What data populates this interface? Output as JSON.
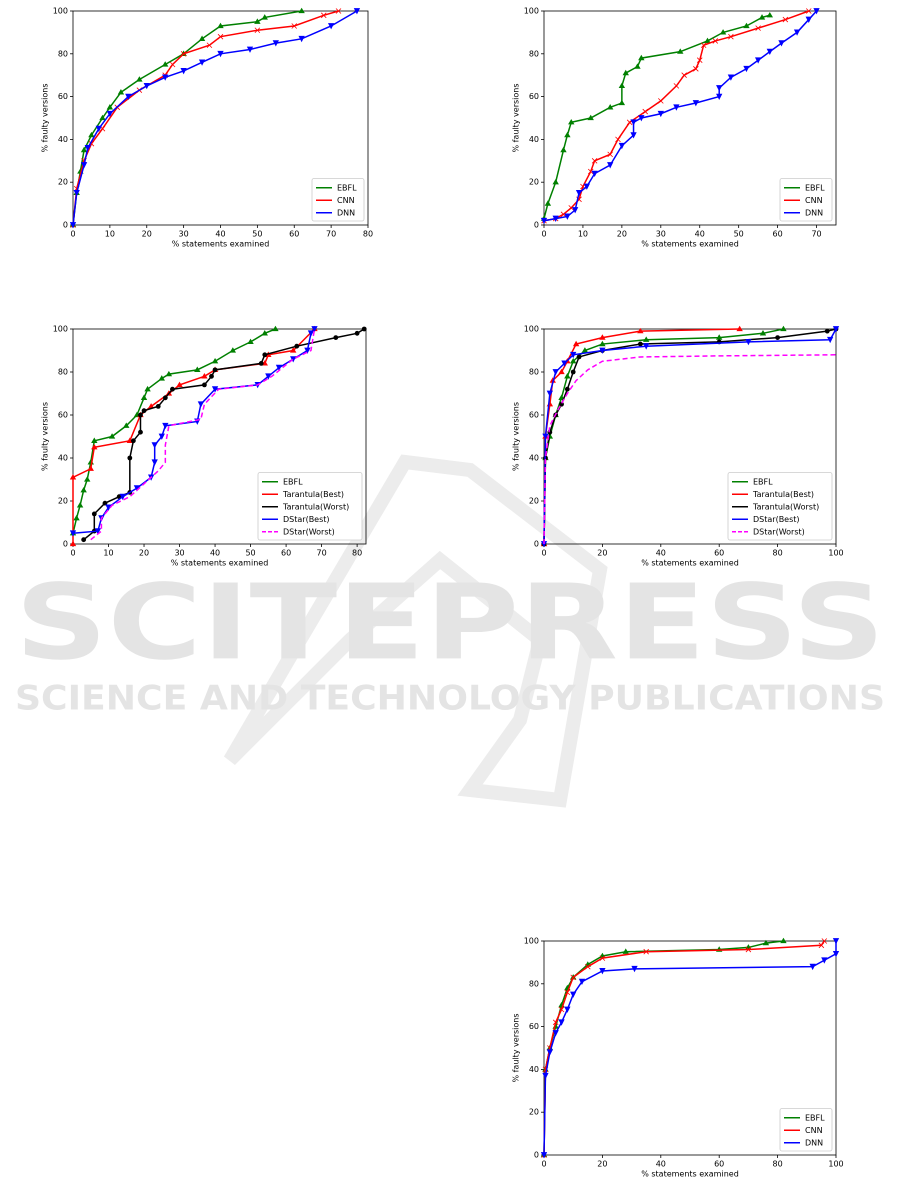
{
  "watermark": {
    "title": "SCITEPRESS",
    "subtitle": "SCIENCE AND TECHNOLOGY PUBLICATIONS"
  },
  "chart_data": [
    {
      "type": "line",
      "x_label": "%  statements examined",
      "y_label": "% faulty versions",
      "xlim": [
        0,
        80
      ],
      "xticks": [
        0,
        10,
        20,
        30,
        40,
        50,
        60,
        70,
        80
      ],
      "ylim": [
        0,
        100
      ],
      "yticks": [
        0,
        20,
        40,
        60,
        80,
        100
      ],
      "legend": "lower right",
      "series": [
        {
          "name": "EBFL",
          "color": "#008000",
          "marker": "star",
          "x": [
            0,
            1,
            2,
            3,
            5,
            8,
            10,
            13,
            18,
            25,
            30,
            35,
            40,
            50,
            52,
            62
          ],
          "values": [
            0,
            15,
            25,
            35,
            42,
            50,
            55,
            62,
            68,
            75,
            80,
            87,
            93,
            95,
            97,
            100
          ]
        },
        {
          "name": "CNN",
          "color": "#ff0000",
          "marker": "x",
          "x": [
            0,
            1,
            3,
            5,
            8,
            12,
            18,
            25,
            27,
            30,
            37,
            40,
            50,
            60,
            68,
            72
          ],
          "values": [
            0,
            17,
            30,
            38,
            45,
            55,
            63,
            70,
            75,
            80,
            84,
            88,
            91,
            93,
            98,
            100
          ]
        },
        {
          "name": "DNN",
          "color": "#0000ff",
          "marker": "tri",
          "x": [
            0,
            1,
            3,
            4,
            7,
            10,
            15,
            20,
            25,
            30,
            35,
            40,
            48,
            55,
            62,
            70,
            77
          ],
          "values": [
            0,
            15,
            28,
            36,
            45,
            52,
            60,
            65,
            69,
            72,
            76,
            80,
            82,
            85,
            87,
            93,
            100
          ]
        }
      ]
    },
    {
      "type": "line",
      "x_label": "%  statements examined",
      "y_label": "% faulty versions",
      "xlim": [
        0,
        75
      ],
      "xticks": [
        0,
        10,
        20,
        30,
        40,
        50,
        60,
        70
      ],
      "ylim": [
        0,
        100
      ],
      "yticks": [
        0,
        20,
        40,
        60,
        80,
        100
      ],
      "legend": "lower right",
      "series": [
        {
          "name": "EBFL",
          "color": "#008000",
          "marker": "star",
          "x": [
            0,
            1,
            3,
            5,
            6,
            7,
            12,
            17,
            20,
            20,
            21,
            24,
            25,
            35,
            42,
            46,
            52,
            56,
            58
          ],
          "values": [
            3,
            10,
            20,
            35,
            42,
            48,
            50,
            55,
            57,
            65,
            71,
            74,
            78,
            81,
            86,
            90,
            93,
            97,
            98
          ]
        },
        {
          "name": "CNN",
          "color": "#ff0000",
          "marker": "x",
          "x": [
            0,
            3,
            5,
            7,
            9,
            10,
            12,
            13,
            17,
            19,
            22,
            26,
            30,
            34,
            36,
            39,
            40,
            41,
            44,
            48,
            55,
            62,
            68
          ],
          "values": [
            2,
            3,
            5,
            8,
            12,
            18,
            25,
            30,
            33,
            40,
            48,
            53,
            58,
            65,
            70,
            73,
            77,
            84,
            86,
            88,
            92,
            96,
            100
          ]
        },
        {
          "name": "DNN",
          "color": "#0000ff",
          "marker": "tri",
          "x": [
            0,
            3,
            6,
            8,
            9,
            11,
            13,
            17,
            20,
            23,
            23,
            25,
            30,
            34,
            39,
            45,
            45,
            48,
            52,
            55,
            58,
            61,
            65,
            68,
            70
          ],
          "values": [
            2,
            3,
            4,
            7,
            15,
            18,
            24,
            28,
            37,
            42,
            48,
            50,
            52,
            55,
            57,
            60,
            64,
            69,
            73,
            77,
            81,
            85,
            90,
            96,
            100
          ]
        }
      ]
    },
    {
      "type": "line",
      "x_label": "%  statements examined",
      "y_label": "% faulty versions",
      "xlim": [
        0,
        82.5
      ],
      "xticks": [
        0,
        10,
        20,
        30,
        40,
        50,
        60,
        70,
        80
      ],
      "ylim": [
        0,
        100
      ],
      "yticks": [
        0,
        20,
        40,
        60,
        80,
        100
      ],
      "legend": "lower right",
      "series": [
        {
          "name": "EBFL",
          "color": "#008000",
          "marker": "star",
          "x": [
            0,
            1,
            2,
            3,
            4,
            5,
            6,
            11,
            15,
            18,
            20,
            21,
            25,
            27,
            35,
            40,
            45,
            50,
            54,
            57
          ],
          "values": [
            5,
            12,
            18,
            25,
            30,
            38,
            48,
            50,
            55,
            60,
            68,
            72,
            77,
            79,
            81,
            85,
            90,
            94,
            98,
            100
          ]
        },
        {
          "name": "Tarantula(Best)",
          "color": "#ff0000",
          "marker": "star",
          "x": [
            0,
            0,
            5,
            6,
            16,
            19,
            22,
            27,
            30,
            37,
            40,
            54,
            55,
            62,
            68
          ],
          "values": [
            0,
            31,
            35,
            45,
            48,
            60,
            64,
            70,
            74,
            78,
            81,
            84,
            88,
            90,
            100
          ]
        },
        {
          "name": "Tarantula(Worst)",
          "color": "#000000",
          "marker": "circle",
          "x": [
            3,
            6,
            6,
            9,
            13,
            16,
            16,
            17,
            19,
            19,
            20,
            24,
            26,
            28,
            37,
            39,
            40,
            53,
            54,
            63,
            74,
            80,
            82
          ],
          "values": [
            2,
            6,
            14,
            19,
            22,
            24,
            40,
            48,
            52,
            60,
            62,
            64,
            68,
            72,
            74,
            78,
            81,
            84,
            88,
            92,
            96,
            98,
            100
          ]
        },
        {
          "name": "DStar(Best)",
          "color": "#0000ff",
          "marker": "tri",
          "x": [
            0,
            7,
            8,
            10,
            14,
            18,
            22,
            23,
            23,
            25,
            26,
            35,
            36,
            40,
            52,
            55,
            58,
            62,
            66,
            67,
            68
          ],
          "values": [
            5,
            6,
            12,
            17,
            22,
            26,
            31,
            38,
            46,
            50,
            55,
            57,
            65,
            72,
            74,
            78,
            82,
            86,
            90,
            98,
            100
          ]
        },
        {
          "name": "DStar(Worst)",
          "color": "#ff00ff",
          "marker": "none",
          "dash": true,
          "x": [
            5,
            8,
            8,
            11,
            16,
            20,
            24,
            26,
            26,
            27,
            36,
            37,
            41,
            52,
            56,
            59,
            62,
            67,
            68
          ],
          "values": [
            2,
            6,
            12,
            18,
            22,
            28,
            34,
            38,
            46,
            55,
            58,
            65,
            72,
            74,
            78,
            82,
            86,
            90,
            100
          ]
        }
      ]
    },
    {
      "type": "line",
      "x_label": "%  statements examined",
      "y_label": "% faulty versions",
      "xlim": [
        0,
        100
      ],
      "xticks": [
        0,
        20,
        40,
        60,
        80,
        100
      ],
      "ylim": [
        0,
        100
      ],
      "yticks": [
        0,
        20,
        40,
        60,
        80,
        100
      ],
      "legend": "lower right",
      "series": [
        {
          "name": "EBFL",
          "color": "#008000",
          "marker": "star",
          "x": [
            0,
            0.5,
            2,
            4,
            6,
            8,
            10,
            14,
            20,
            35,
            60,
            75,
            82
          ],
          "values": [
            0,
            40,
            50,
            60,
            68,
            78,
            85,
            90,
            93,
            95,
            96,
            98,
            100
          ]
        },
        {
          "name": "Tarantula(Best)",
          "color": "#ff0000",
          "marker": "star",
          "x": [
            0,
            0.5,
            2,
            3,
            6,
            8,
            11,
            20,
            33,
            67
          ],
          "values": [
            0,
            50,
            65,
            76,
            80,
            85,
            93,
            96,
            99,
            100
          ]
        },
        {
          "name": "Tarantula(Worst)",
          "color": "#000000",
          "marker": "circle",
          "x": [
            0,
            0.5,
            2,
            4,
            6,
            8,
            10,
            12,
            20,
            33,
            60,
            80,
            97,
            100
          ],
          "values": [
            0,
            40,
            52,
            60,
            65,
            72,
            80,
            87,
            90,
            93,
            94,
            96,
            99,
            100
          ]
        },
        {
          "name": "DStar(Best)",
          "color": "#0000ff",
          "marker": "tri",
          "x": [
            0,
            0.5,
            2,
            4,
            7,
            10,
            20,
            35,
            70,
            98,
            100
          ],
          "values": [
            0,
            50,
            70,
            80,
            84,
            88,
            90,
            92,
            94,
            95,
            100
          ]
        },
        {
          "name": "DStar(Worst)",
          "color": "#ff00ff",
          "marker": "none",
          "dash": true,
          "x": [
            0,
            0.5,
            2,
            5,
            8,
            11,
            15,
            20,
            33,
            60,
            100
          ],
          "values": [
            0,
            40,
            55,
            63,
            70,
            76,
            81,
            85,
            87,
            87.5,
            88
          ]
        }
      ]
    },
    {
      "type": "line",
      "x_label": "%  statements examined",
      "y_label": "% faulty versions",
      "xlim": [
        0,
        100
      ],
      "xticks": [
        0,
        20,
        40,
        60,
        80,
        100
      ],
      "ylim": [
        0,
        100
      ],
      "yticks": [
        0,
        20,
        40,
        60,
        80,
        100
      ],
      "legend": "lower right",
      "series": [
        {
          "name": "EBFL",
          "color": "#008000",
          "marker": "star",
          "x": [
            0,
            0.5,
            2,
            4,
            6,
            8,
            10,
            15,
            20,
            28,
            60,
            70,
            76,
            82
          ],
          "values": [
            0,
            40,
            50,
            60,
            70,
            78,
            83,
            89,
            93,
            95,
            96,
            97,
            99,
            100
          ]
        },
        {
          "name": "CNN",
          "color": "#ff0000",
          "marker": "x",
          "x": [
            0,
            0.5,
            2,
            4,
            6,
            8,
            10,
            15,
            20,
            35,
            70,
            95,
            96
          ],
          "values": [
            0,
            40,
            50,
            62,
            68,
            76,
            83,
            88,
            92,
            95,
            96,
            98,
            100
          ]
        },
        {
          "name": "DNN",
          "color": "#0000ff",
          "marker": "tri",
          "x": [
            0,
            0.5,
            2,
            4,
            6,
            8,
            10,
            13,
            20,
            31,
            92,
            96,
            100,
            100
          ],
          "values": [
            0,
            37,
            48,
            57,
            62,
            68,
            75,
            81,
            86,
            87,
            88,
            91,
            94,
            100
          ]
        }
      ]
    }
  ]
}
